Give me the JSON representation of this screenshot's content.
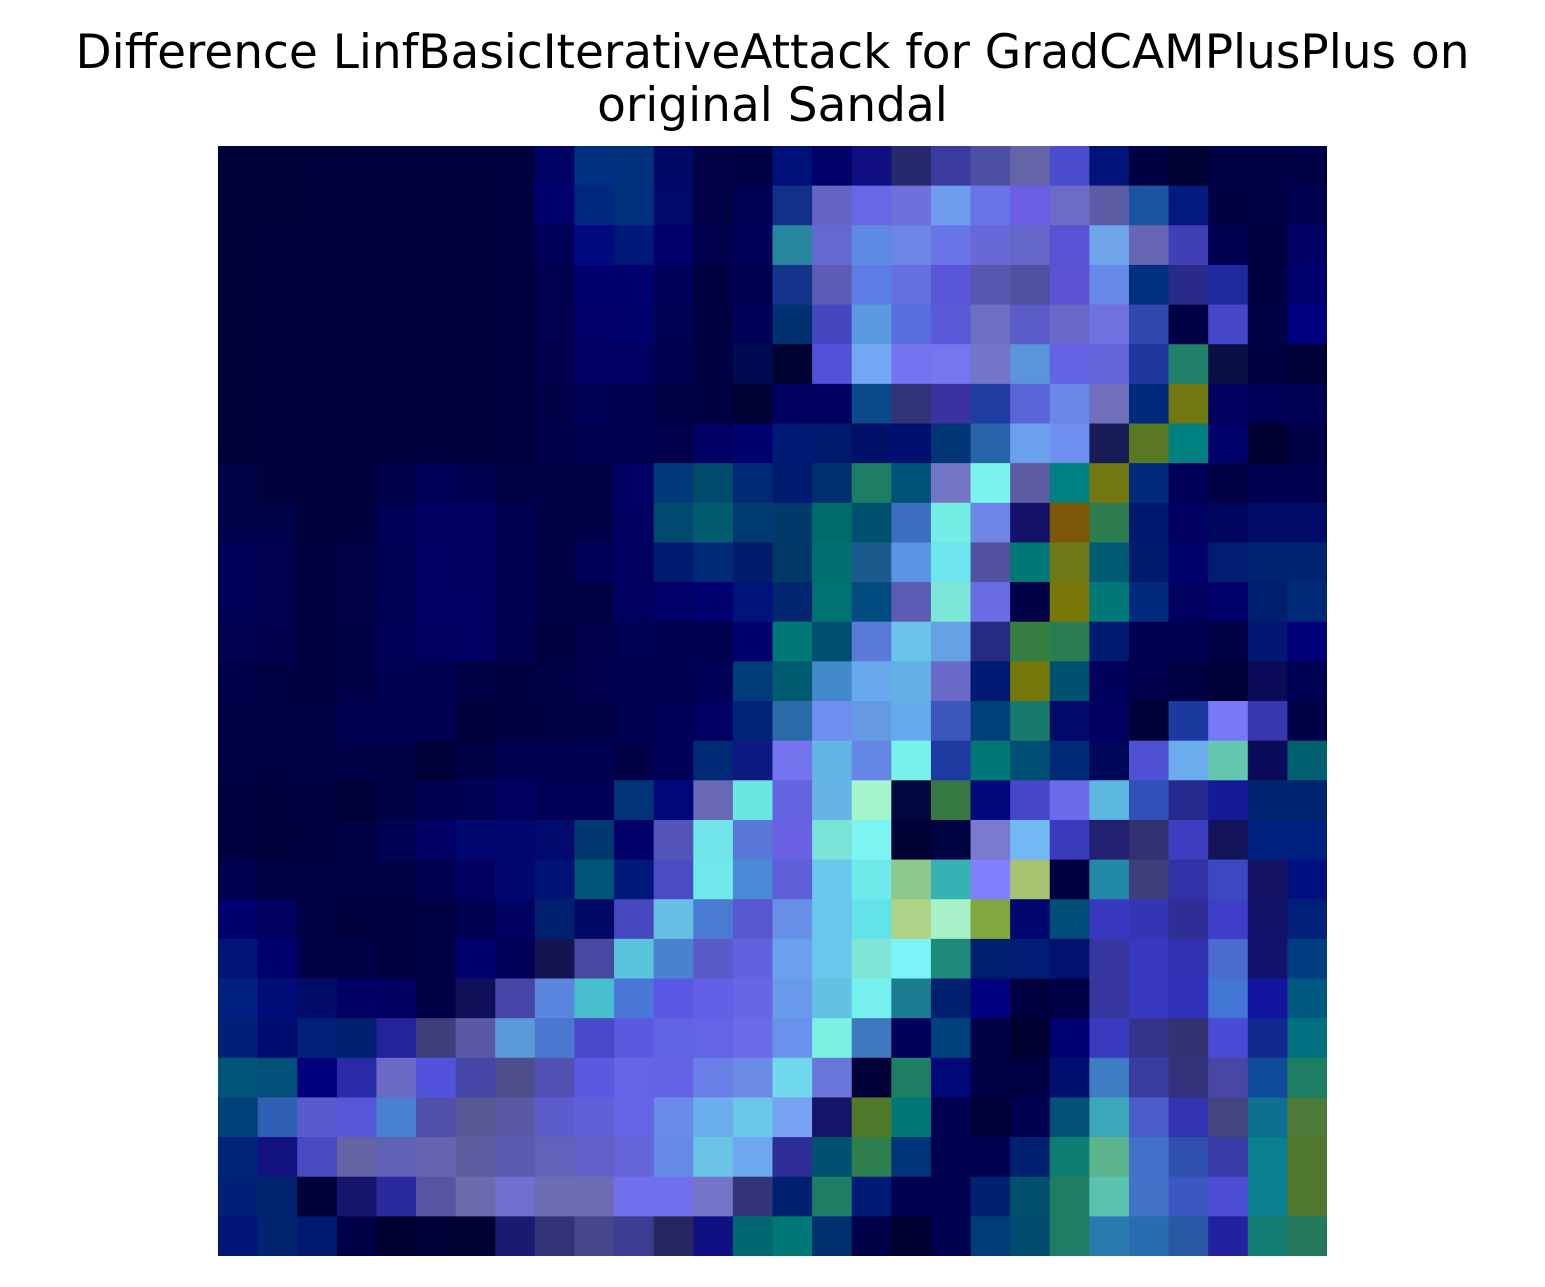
{
  "title": {
    "line1": "Difference LinfBasicIterativeAttack for GradCAMPlusPlus on",
    "line2": "original Sandal"
  },
  "image": {
    "description_icon": "heatmap-overlay-image",
    "palette": {
      "0": "#000133",
      "1": "#00014d",
      "2": "#000266",
      "3": "#000880",
      "4": "#011a6b",
      "5": "#04307c",
      "6": "#074a7e",
      "7": "#0a6677",
      "8": "#0f7f77",
      "9": "#1d7f65",
      "a": "#2a7f4f",
      "b": "#4f7a2a",
      "c": "#737810",
      "d": "#7c7306",
      "e": "#836000",
      "f": "#1a1f88",
      "g": "#25299a",
      "h": "#3335a9",
      "i": "#3d46bd",
      "j": "#4551c9",
      "k": "#5058d8",
      "l": "#5c60de",
      "m": "#6470e3",
      "n": "#6d78e6",
      "o": "#7a86ec",
      "p": "#6d9de0",
      "q": "#5b8fd7",
      "r": "#4a7bc8",
      "s": "#3b66b4",
      "t": "#2d4d9a",
      "u": "#5a5aa0",
      "v": "#4b4b90",
      "w": "#6b6bb5",
      "x": "#6fa8ec",
      "y": "#78c4e8",
      "z": "#6ee4ea",
      "A": "#7ef5f0",
      "B": "#8fe9d6",
      "C": "#a5f0c8",
      "D": "#b1d88a",
      "E": "#8fa74a",
      "F": "#36b4b6",
      "G": "#5fbfa0",
      "H": "#2a8aa8",
      "I": "#3e3e78",
      "J": "#8080ff",
      "K": "#7070f0"
    },
    "rows": [
      "1111000f1fhui3101",
      "11001kwmKuuv4011",
      "0002f56m55nnvtph31",
      "0002133cw5nlq4uf3",
      "0001122ioJoix9011",
      "000000053Bm53d0a3",
      "00000002221ccs000",
      "000002000a4z8000",
      "000000334xtBc400",
      "000000665wv0d000",
      "00000003489zm98111",
      "000000011"
    ]
  }
}
